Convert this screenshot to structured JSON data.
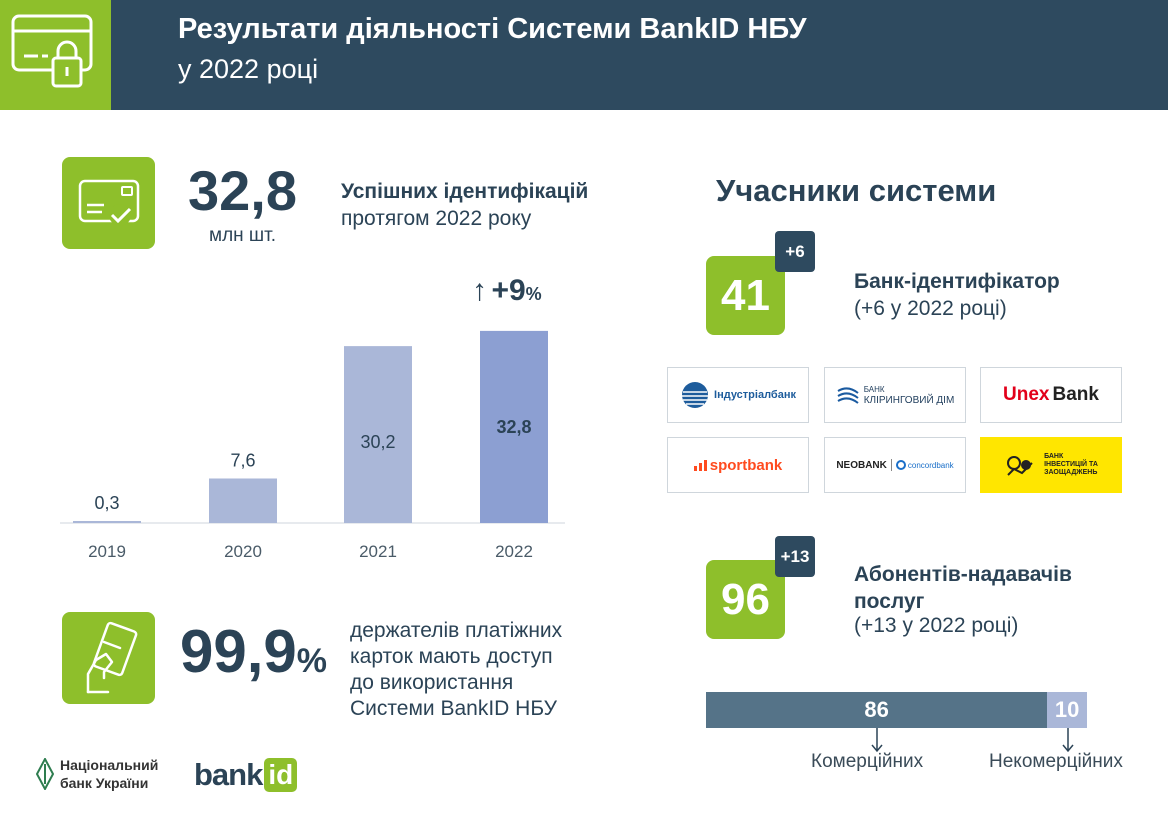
{
  "header": {
    "title": "Результати діяльності Системи BankID НБУ",
    "subtitle": "у 2022 році"
  },
  "identifications": {
    "value": "32,8",
    "unit": "млн шт.",
    "label_bold": "Успішних ідентифікацій",
    "label_rest": "протягом 2022 року"
  },
  "growth": {
    "arrow": "↑",
    "value": "+9",
    "unit": "%"
  },
  "chart_data": {
    "type": "bar",
    "categories": [
      "2019",
      "2020",
      "2021",
      "2022"
    ],
    "values": [
      0.3,
      7.6,
      30.2,
      32.8
    ],
    "value_labels": [
      "0,3",
      "7,6",
      "30,2",
      "32,8"
    ],
    "ylim": [
      0,
      35
    ],
    "colors": [
      "#aab7d8",
      "#aab7d8",
      "#aab7d8",
      "#8c9fd2"
    ],
    "grid": false
  },
  "cardholders": {
    "value": "99,9",
    "unit": "%",
    "lines": [
      "держателів платіжних",
      "карток мають доступ",
      "до використання",
      "Системи BankID НБУ"
    ]
  },
  "footer": {
    "nbu_line1": "Національний",
    "nbu_line2": "банк України",
    "bankid_word": "bank",
    "bankid_id": "id"
  },
  "members": {
    "title": "Учасники системи",
    "identifier": {
      "value": "41",
      "badge": "+6",
      "label": "Банк-ідентифікатор",
      "note": "(+6 у 2022 році)"
    },
    "logos": [
      {
        "text": "Індустріалбанк"
      },
      {
        "line1": "БАНК",
        "line2": "КЛІРИНГОВИЙ ДІМ"
      },
      {
        "part1": "Unex",
        "part2": "Bank"
      },
      {
        "text": "sportbank"
      },
      {
        "part1": "NEOBANK",
        "part2": "concordbank"
      },
      {
        "line1": "БАНК",
        "line2": "ІНВЕСТИЦІЙ ТА",
        "line3": "ЗАОЩАДЖЕНЬ"
      }
    ],
    "providers": {
      "value": "96",
      "badge": "+13",
      "label_line1": "Абонентів-надавачів",
      "label_line2": "послуг",
      "note": "(+13 у 2022 році)"
    },
    "split": {
      "commercial": {
        "value": 86,
        "label": "Комерційних",
        "color": "#557388"
      },
      "noncommercial": {
        "value": 10,
        "label": "Некомерційних",
        "color": "#aab7d8"
      }
    }
  }
}
